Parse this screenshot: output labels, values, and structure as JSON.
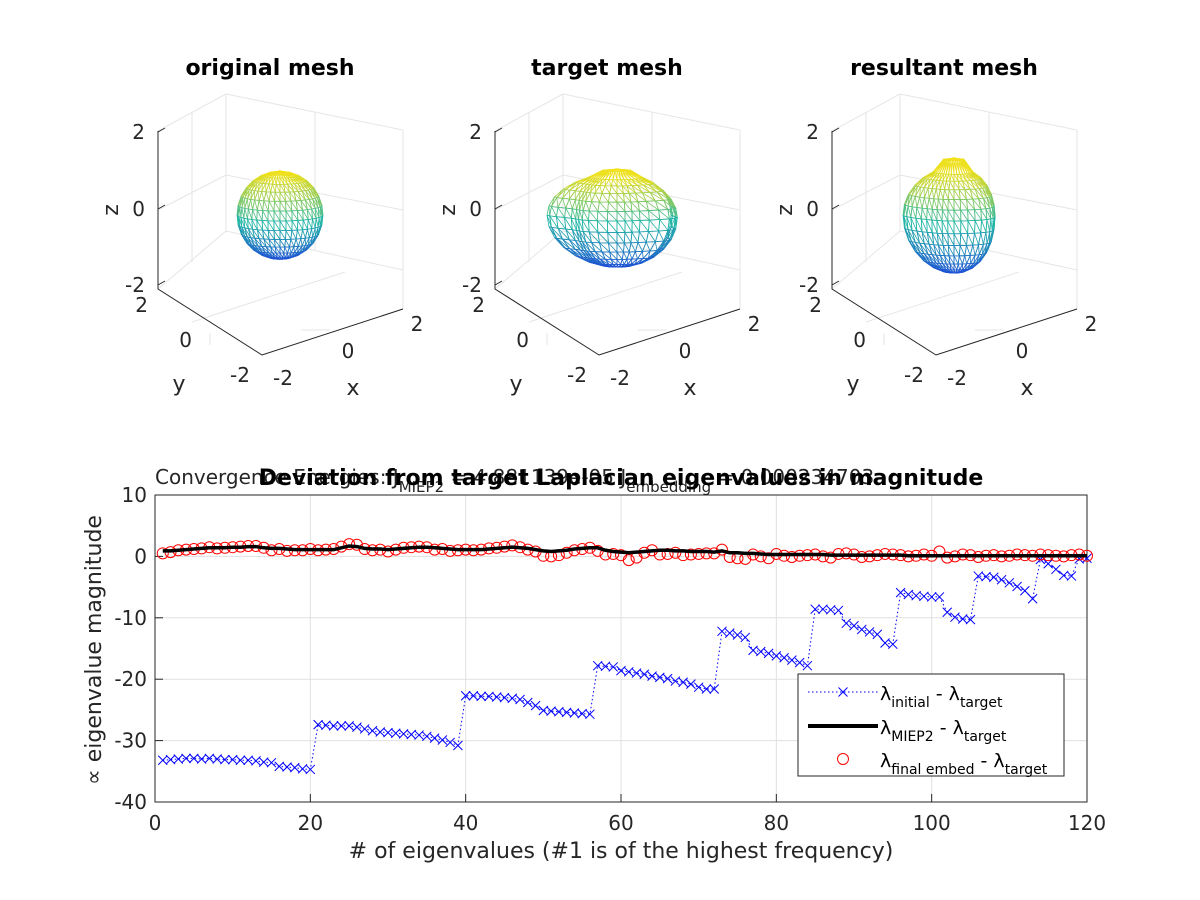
{
  "colors": {
    "initial": "#0000ff",
    "miep2": "#000000",
    "final": "#ff0000",
    "grid": "#e0e0e0",
    "axis": "#262626",
    "mesh_low": "#1f4fd6",
    "mesh_mid": "#22b5a6",
    "mesh_high": "#f2e11b"
  },
  "meshes": [
    {
      "title": "original mesh",
      "shape": "sphere",
      "xlabel": "x",
      "ylabel": "y",
      "zlabel": "z",
      "z_ticks": [
        "2",
        "0",
        "-2"
      ],
      "y_ticks": [
        "2",
        "0",
        "-2"
      ],
      "x_ticks": [
        "-2",
        "0",
        "2"
      ]
    },
    {
      "title": "target mesh",
      "shape": "blob",
      "xlabel": "x",
      "ylabel": "y",
      "zlabel": "z",
      "z_ticks": [
        "2",
        "0",
        "-2"
      ],
      "y_ticks": [
        "2",
        "0",
        "-2"
      ],
      "x_ticks": [
        "-2",
        "0",
        "2"
      ]
    },
    {
      "title": "resultant mesh",
      "shape": "tall-blob",
      "xlabel": "x",
      "ylabel": "y",
      "zlabel": "z",
      "z_ticks": [
        "2",
        "0",
        "-2"
      ],
      "y_ticks": [
        "2",
        "0",
        "-2"
      ],
      "x_ticks": [
        "-2",
        "0",
        "2"
      ]
    }
  ],
  "convergence_text": {
    "prefix": "Convergence Energies: J",
    "sub1": "MIEP2",
    "mid": " = 4.881139e-05   J",
    "sub2": "embedding",
    "suffix": " = 0.000234703"
  },
  "chart_data": {
    "type": "line",
    "title": "Deviation from target Laplacian eigenvalues in magnitude",
    "xlabel": "# of eigenvalues (#1 is of the highest frequency)",
    "ylabel": "∝ eigenvalue magnitude",
    "xlim": [
      0,
      120
    ],
    "ylim": [
      -40,
      10
    ],
    "x_ticks": [
      0,
      20,
      40,
      60,
      80,
      100,
      120
    ],
    "y_ticks": [
      10,
      0,
      -10,
      -20,
      -30,
      -40
    ],
    "grid": true,
    "legend_position": "bottom-right",
    "legend": [
      {
        "main": "λ",
        "sub1": "initial",
        "mid": " - λ",
        "sub2": "target"
      },
      {
        "main": "λ",
        "sub1": "MIEP2",
        "mid": " - λ",
        "sub2": "target"
      },
      {
        "main": "λ",
        "sub1": "final embed",
        "mid": " - λ",
        "sub2": "target"
      }
    ],
    "series": [
      {
        "name": "λinitial - λtarget",
        "style": "dotted-x",
        "values": [
          -33.2,
          -33.1,
          -33.0,
          -32.9,
          -32.9,
          -33.0,
          -32.9,
          -33.0,
          -33.1,
          -33.1,
          -33.2,
          -33.2,
          -33.3,
          -33.5,
          -33.6,
          -34.2,
          -34.3,
          -34.4,
          -34.6,
          -34.7,
          -27.4,
          -27.5,
          -27.6,
          -27.6,
          -27.6,
          -27.8,
          -28.1,
          -28.4,
          -28.6,
          -28.7,
          -28.8,
          -28.9,
          -29.0,
          -29.1,
          -29.3,
          -29.6,
          -29.9,
          -30.3,
          -30.8,
          -22.7,
          -22.7,
          -22.8,
          -22.8,
          -22.9,
          -23.0,
          -23.1,
          -23.3,
          -23.8,
          -24.3,
          -25.1,
          -25.2,
          -25.3,
          -25.4,
          -25.5,
          -25.6,
          -25.7,
          -17.8,
          -17.9,
          -18.0,
          -18.6,
          -18.8,
          -19.0,
          -19.2,
          -19.5,
          -19.7,
          -19.9,
          -20.3,
          -20.5,
          -20.8,
          -21.3,
          -21.6,
          -21.6,
          -12.2,
          -12.5,
          -12.8,
          -13.2,
          -15.3,
          -15.5,
          -15.8,
          -16.2,
          -16.5,
          -16.9,
          -17.3,
          -17.8,
          -8.6,
          -8.6,
          -8.7,
          -8.8,
          -10.9,
          -11.3,
          -11.9,
          -12.3,
          -12.7,
          -14.1,
          -14.3,
          -5.9,
          -6.2,
          -6.4,
          -6.5,
          -6.6,
          -6.6,
          -9.1,
          -9.9,
          -10.2,
          -10.3,
          -3.2,
          -3.3,
          -3.4,
          -3.8,
          -4.3,
          -4.9,
          -5.6,
          -6.9,
          -0.5,
          -1.2,
          -2.1,
          -3.1,
          -3.2,
          -0.4,
          -0.3
        ]
      },
      {
        "name": "λMIEP2 - λtarget",
        "style": "solid-thick",
        "values": [
          0.9,
          0.9,
          1.0,
          1.1,
          1.2,
          1.3,
          1.4,
          1.4,
          1.4,
          1.5,
          1.5,
          1.6,
          1.6,
          1.4,
          1.3,
          1.3,
          1.2,
          1.1,
          1.1,
          1.1,
          1.1,
          1.1,
          1.1,
          1.4,
          1.7,
          1.6,
          1.3,
          1.2,
          1.2,
          1.1,
          1.2,
          1.3,
          1.4,
          1.5,
          1.5,
          1.4,
          1.3,
          1.2,
          1.1,
          1.1,
          1.1,
          1.1,
          1.2,
          1.3,
          1.4,
          1.5,
          1.4,
          1.3,
          1.1,
          0.9,
          0.8,
          0.9,
          1.0,
          1.2,
          1.3,
          1.4,
          1.4,
          1.0,
          0.8,
          0.7,
          0.6,
          0.7,
          0.8,
          0.9,
          1.0,
          1.0,
          0.9,
          0.9,
          0.8,
          0.8,
          0.8,
          0.7,
          0.9,
          0.6,
          0.6,
          0.5,
          0.5,
          0.4,
          0.3,
          0.3,
          0.3,
          0.3,
          0.3,
          0.3,
          0.3,
          0.3,
          0.2,
          0.2,
          0.2,
          0.2,
          0.2,
          0.2,
          0.2,
          0.2,
          0.2,
          0.2,
          0.1,
          0.1,
          0.1,
          0.1,
          0.1,
          0.1,
          0.1,
          0.1,
          0.1,
          0.1,
          0.1,
          0.1,
          0.1,
          0.1,
          0.1,
          0.1,
          0.1,
          0.1,
          0.1,
          0.1,
          0.1,
          0.1,
          0.1,
          0.1
        ]
      },
      {
        "name": "λfinal embed - λtarget",
        "style": "circles",
        "values": [
          0.5,
          0.7,
          1.0,
          1.1,
          1.2,
          1.3,
          1.5,
          1.3,
          1.4,
          1.5,
          1.6,
          1.7,
          1.7,
          1.4,
          1.0,
          1.2,
          0.9,
          1.0,
          1.0,
          1.2,
          1.0,
          1.1,
          1.2,
          1.6,
          2.0,
          1.9,
          1.2,
          1.0,
          1.1,
          0.8,
          1.1,
          1.4,
          1.5,
          1.6,
          1.5,
          1.1,
          1.2,
          0.9,
          1.0,
          1.1,
          1.0,
          1.1,
          1.3,
          1.4,
          1.6,
          1.8,
          1.5,
          1.1,
          0.8,
          0.1,
          0.0,
          0.2,
          0.6,
          1.0,
          1.2,
          1.4,
          0.9,
          0.3,
          0.4,
          0.2,
          -0.6,
          -0.2,
          0.6,
          1.0,
          0.3,
          0.4,
          0.6,
          0.2,
          0.3,
          0.4,
          0.5,
          0.5,
          1.1,
          -0.1,
          -0.3,
          -0.4,
          0.3,
          0.0,
          -0.3,
          0.4,
          0.1,
          -0.1,
          0.1,
          0.2,
          0.3,
          0.0,
          -0.2,
          0.4,
          0.5,
          0.3,
          -0.1,
          0.0,
          0.2,
          0.4,
          0.3,
          0.2,
          0.0,
          0.1,
          0.3,
          0.1,
          0.8,
          -0.2,
          0.0,
          0.3,
          0.2,
          -0.1,
          0.1,
          0.2,
          0.0,
          0.1,
          0.3,
          0.2,
          0.1,
          0.3,
          0.2,
          0.1,
          0.0,
          0.2,
          0.3,
          0.1
        ]
      }
    ]
  }
}
